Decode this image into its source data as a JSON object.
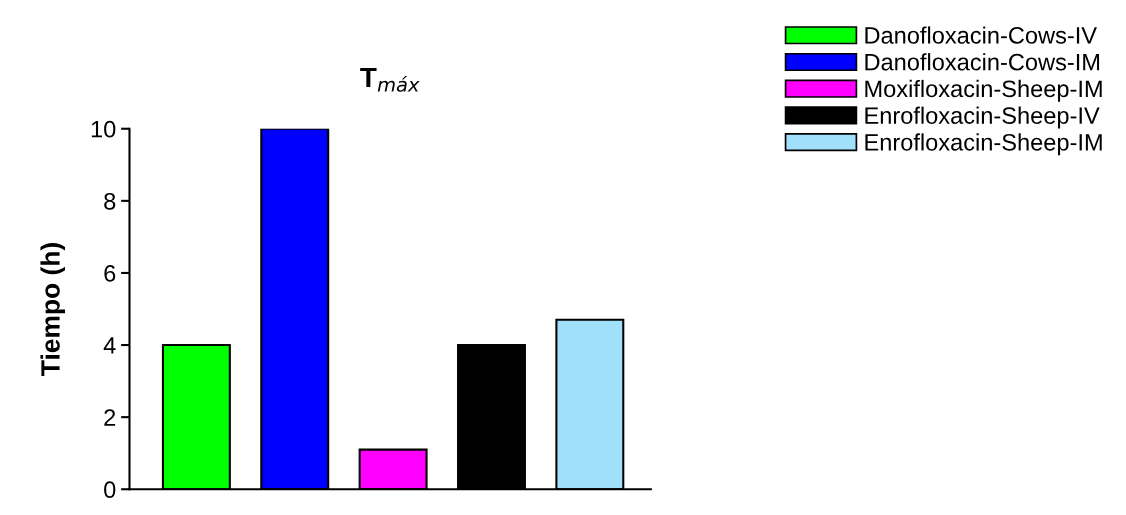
{
  "chart_data": {
    "type": "bar",
    "title": "T$_{máx}$",
    "ylabel": "Tiempo (h)",
    "categories": [
      null,
      null,
      null,
      null,
      null
    ],
    "ylim": [
      0,
      10
    ],
    "yticks": [
      0,
      2,
      4,
      6,
      8,
      10
    ],
    "grid": false,
    "legend": "top right",
    "series": [
      {
        "name": "Danofloxacin-Cows-IV",
        "color": "#00ff00",
        "values": [
          4,
          null,
          null,
          null,
          null
        ]
      },
      {
        "name": "Danofloxacin-Cows-IM",
        "color": "#0000ff",
        "values": [
          null,
          10,
          null,
          null,
          null
        ]
      },
      {
        "name": "Moxifloxacin-Sheep-IM",
        "color": "#ff00ff",
        "values": [
          null,
          null,
          1.1,
          null,
          null
        ]
      },
      {
        "name": "Enrofloxacin-Sheep-IV",
        "color": "#000000",
        "values": [
          null,
          null,
          null,
          4,
          null
        ]
      },
      {
        "name": "Enrofloxacin-Sheep-IM",
        "color": "#a0e0fa",
        "values": [
          null,
          null,
          null,
          null,
          4.7
        ]
      }
    ]
  }
}
